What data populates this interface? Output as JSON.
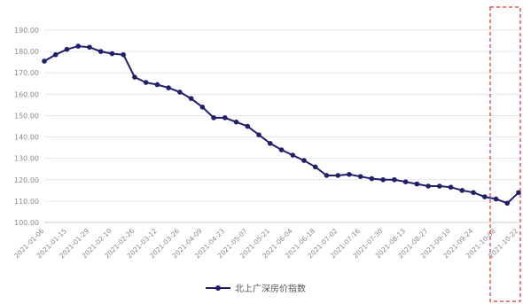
{
  "chart_data": {
    "type": "line",
    "title": "",
    "xlabel": "",
    "ylabel": "",
    "ylim": [
      100,
      190
    ],
    "yticks": [
      "100.00",
      "110.00",
      "120.00",
      "130.00",
      "140.00",
      "150.00",
      "160.00",
      "170.00",
      "180.00",
      "190.00"
    ],
    "xtick_labels": [
      "2021-01-06",
      "2021-01-15",
      "2021-01-29",
      "2021-02-10",
      "2021-02-26",
      "2021-03-12",
      "2021-03-26",
      "2021-04-09",
      "2021-04-23",
      "2021-05-07",
      "2021-05-21",
      "2021-06-04",
      "2021-06-18",
      "2021-07-02",
      "2021-07-16",
      "2021-07-30",
      "2021-08-13",
      "2021-08-27",
      "2021-09-10",
      "2021-09-24",
      "2021-10-08",
      "2021-10-22"
    ],
    "grid": true,
    "legend_position": "bottom",
    "series": [
      {
        "name": "北上广深房价指数",
        "color": "#1f1f6b",
        "values": [
          175.5,
          178.5,
          181,
          182.5,
          182,
          180,
          179,
          178.5,
          168,
          165.5,
          164.5,
          163,
          161,
          158,
          154,
          149,
          149,
          147,
          145,
          141,
          137,
          134,
          131.5,
          129,
          126,
          122,
          122,
          122.5,
          121.5,
          120.5,
          120,
          120,
          119,
          118,
          117,
          117,
          116.5,
          115,
          114,
          112,
          111,
          109,
          114
        ]
      }
    ]
  },
  "annotation": {
    "highlight_box_color": "#e03030"
  }
}
